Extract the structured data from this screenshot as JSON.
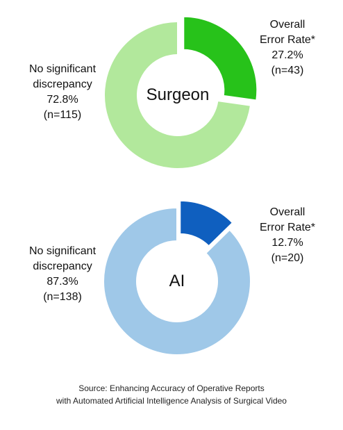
{
  "chart_data": [
    {
      "type": "pie",
      "title": "Surgeon",
      "categories": [
        "No significant discrepancy",
        "Overall Error Rate*"
      ],
      "values": [
        115,
        43
      ],
      "percent_labels": [
        "72.8%",
        "27.2%"
      ],
      "count_labels": [
        "(n=115)",
        "(n=43)"
      ],
      "label_lines": [
        [
          "No significant",
          "discrepancy"
        ],
        [
          "Overall",
          "Error Rate*"
        ]
      ],
      "colors": [
        "#b2e89c",
        "#27c21a"
      ],
      "exploded": [
        false,
        true
      ]
    },
    {
      "type": "pie",
      "title": "AI",
      "categories": [
        "No significant discrepancy",
        "Overall Error Rate*"
      ],
      "values": [
        138,
        20
      ],
      "percent_labels": [
        "87.3%",
        "12.7%"
      ],
      "count_labels": [
        "(n=138)",
        "(n=20)"
      ],
      "label_lines": [
        [
          "No significant",
          "discrepancy"
        ],
        [
          "Overall",
          "Error Rate*"
        ]
      ],
      "colors": [
        "#9fc8e8",
        "#0f5fbf"
      ],
      "exploded": [
        false,
        true
      ]
    }
  ],
  "source": {
    "line1": "Source: Enhancing Accuracy of Operative Reports",
    "line2": "with Automated Artificial Intelligence Analysis of Surgical Video"
  }
}
